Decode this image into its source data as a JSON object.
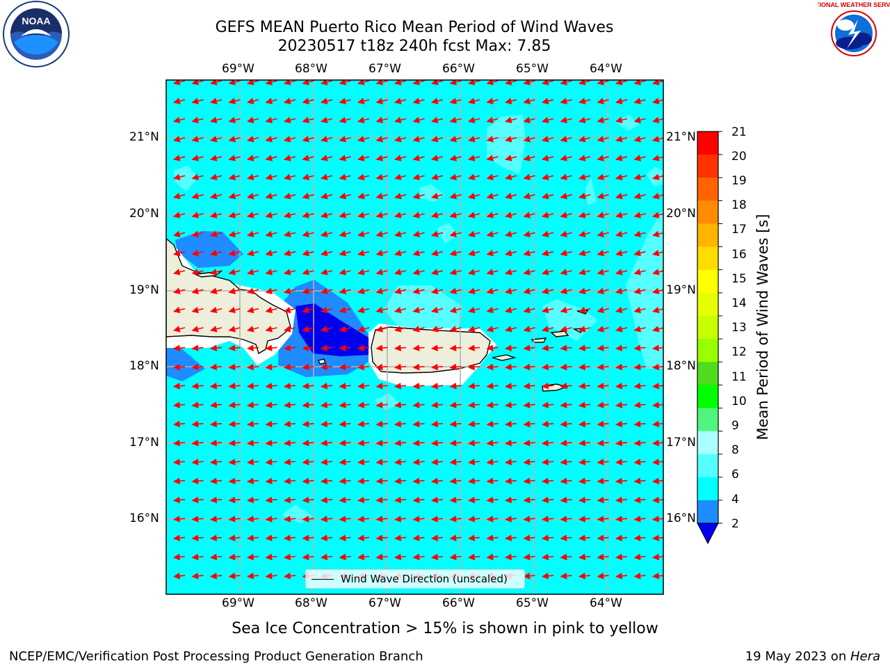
{
  "header": {
    "title_line1": "GEFS MEAN Puerto Rico Mean Period of Wind Waves",
    "title_line2": "20230517 t18z 240h fcst   Max: 7.85"
  },
  "logos": {
    "left": {
      "icon": "noaa-logo",
      "text": "NOAA"
    },
    "right": {
      "icon": "nws-logo",
      "text": "NATIONAL WEATHER SERVICE"
    }
  },
  "map": {
    "lon_labels": [
      "69°W",
      "68°W",
      "67°W",
      "66°W",
      "65°W",
      "64°W"
    ],
    "lat_labels": [
      "21°N",
      "20°N",
      "19°N",
      "18°N",
      "17°N",
      "16°N"
    ],
    "lon_range": [
      -70,
      -63.25
    ],
    "lat_range": [
      15.05,
      21.75
    ],
    "vector_direction": "westward",
    "legend_label": "Wind Wave Direction (unscaled)",
    "colors": {
      "ocean_4_6": "#00ffff",
      "ocean_6_8": "#55ffff",
      "ocean_2_4": "#1e8cff",
      "ocean_below_2": "#0000ee",
      "land": "#eeeedc",
      "arrow": "#ff0000",
      "grid": "#b4b4b4"
    }
  },
  "colorbar": {
    "title": "Mean Period of Wind Waves [s]",
    "ticks": [
      "21",
      "20",
      "19",
      "18",
      "17",
      "16",
      "15",
      "14",
      "13",
      "12",
      "11",
      "10",
      "9",
      "8",
      "6",
      "4",
      "2"
    ],
    "colors": [
      "#ff0000",
      "#ff3200",
      "#ff6400",
      "#ff8c00",
      "#ffb400",
      "#ffdc00",
      "#ffff00",
      "#e6ff00",
      "#c8ff00",
      "#96ff00",
      "#50dc1e",
      "#00ff00",
      "#50f57d",
      "#aaffff",
      "#55ffff",
      "#00ffff",
      "#1e8cff"
    ],
    "under_color": "#0000ee"
  },
  "footer": {
    "note": "Sea Ice Concentration > 15% is shown in pink to yellow",
    "credit": "NCEP/EMC/Verification Post Processing Product Generation Branch",
    "date": "19 May 2023 on ",
    "machine": "Hera"
  }
}
